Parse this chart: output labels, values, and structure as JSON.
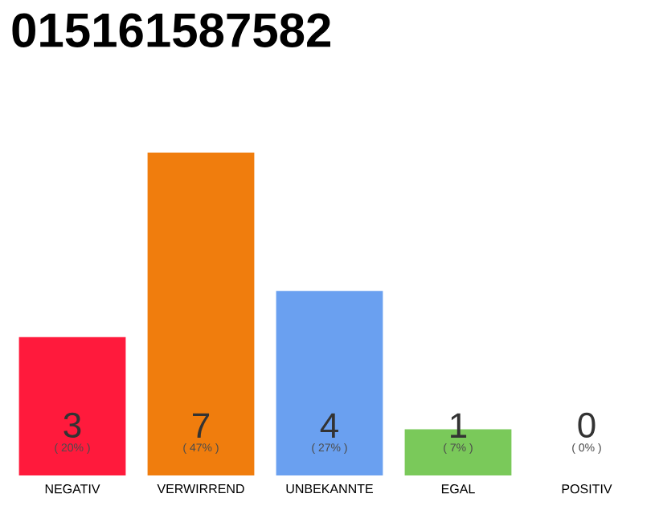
{
  "chart_data": {
    "type": "bar",
    "title": "015161587582",
    "categories": [
      "NEGATIV",
      "VERWIRREND",
      "UNBEKANNTE",
      "EGAL",
      "POSITIV"
    ],
    "values": [
      3,
      7,
      4,
      1,
      0
    ],
    "colors": [
      "#ff1a3c",
      "#f07d0d",
      "#6aa0f0",
      "#7ac95a",
      "#cccccc"
    ],
    "ylim": [
      0,
      7
    ],
    "data_labels": true,
    "annotations": [
      "( 20% )",
      "( 47% )",
      "( 27% )",
      "( 7% )",
      "( 0% )"
    ]
  }
}
